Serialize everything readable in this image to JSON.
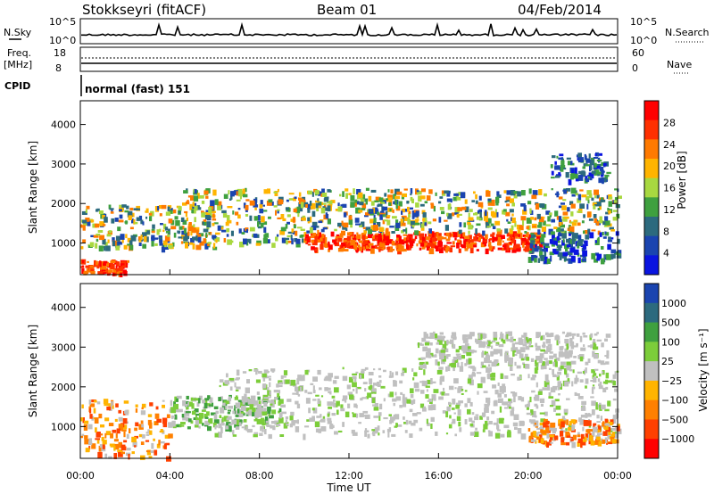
{
  "header": {
    "station": "Stokkseyri (fitACF)",
    "beam": "Beam 01",
    "date": "04/Feb/2014"
  },
  "param_panels": {
    "nsky_label": "N.Sky",
    "nsky_ticks": [
      "10^5",
      "10^0"
    ],
    "nsearch_label": "N.Search",
    "nsearch_ticks": [
      "10^5",
      "10^0"
    ],
    "freq_label": "Freq.",
    "freq_unit": "[MHz]",
    "freq_ticks": [
      "18",
      "8"
    ],
    "nave_label": "Nave",
    "nave_ticks": [
      "60",
      "0"
    ],
    "cpid_label": "CPID",
    "cpid_value": "normal (fast) 151"
  },
  "chart_data": [
    {
      "type": "heatmap",
      "name": "power",
      "ylabel": "Slant Range [km]",
      "xlabel": "Time UT",
      "xlim": [
        0,
        24
      ],
      "ylim": [
        200,
        4600
      ],
      "yticks": [
        "1000",
        "2000",
        "3000",
        "4000"
      ],
      "xticks": [
        "00:00",
        "04:00",
        "08:00",
        "12:00",
        "16:00",
        "20:00",
        "00:00"
      ],
      "colorbar": {
        "label": "Power [dB]",
        "ticks": [
          "28",
          "24",
          "20",
          "16",
          "12",
          "8",
          "4"
        ],
        "colors": [
          "#ff0000",
          "#ff3000",
          "#ff7a00",
          "#ffb400",
          "#a8d840",
          "#3fa03f",
          "#2c6a7e",
          "#1a44b0",
          "#0a14e0"
        ]
      },
      "bands": [
        {
          "t0": 0.0,
          "t1": 2.0,
          "r_lo": 250,
          "r_hi": 600,
          "level": "high"
        },
        {
          "t0": 0.0,
          "t1": 6.0,
          "r_lo": 900,
          "r_hi": 2000,
          "level": "mid"
        },
        {
          "t0": 4.5,
          "t1": 10.0,
          "r_lo": 1000,
          "r_hi": 2400,
          "level": "mid"
        },
        {
          "t0": 10.0,
          "t1": 20.5,
          "r_lo": 850,
          "r_hi": 1300,
          "level": "high"
        },
        {
          "t0": 10.0,
          "t1": 24.0,
          "r_lo": 1300,
          "r_hi": 2400,
          "level": "mid"
        },
        {
          "t0": 20.0,
          "t1": 24.0,
          "r_lo": 600,
          "r_hi": 1300,
          "level": "low"
        },
        {
          "t0": 21.0,
          "t1": 23.5,
          "r_lo": 2600,
          "r_hi": 3300,
          "level": "low"
        }
      ]
    },
    {
      "type": "heatmap",
      "name": "velocity",
      "ylabel": "Slant Range [km]",
      "xlabel": "Time UT",
      "xlim": [
        0,
        24
      ],
      "ylim": [
        200,
        4600
      ],
      "yticks": [
        "1000",
        "2000",
        "3000",
        "4000"
      ],
      "xticks": [
        "00:00",
        "04:00",
        "08:00",
        "12:00",
        "16:00",
        "20:00",
        "00:00"
      ],
      "colorbar": {
        "label": "Velocity [m s⁻¹]",
        "ticks": [
          "1000",
          "500",
          "100",
          "25",
          "−25",
          "−100",
          "−500",
          "−1000"
        ],
        "colors": [
          "#1a44b0",
          "#2c6a7e",
          "#3fa03f",
          "#7ccd3a",
          "#c0c0c0",
          "#ffb400",
          "#ff8000",
          "#ff4000",
          "#ff0000"
        ]
      },
      "bands": [
        {
          "t0": 0.0,
          "t1": 4.0,
          "r_lo": 250,
          "r_hi": 1700,
          "level": "orange"
        },
        {
          "t0": 4.0,
          "t1": 9.0,
          "r_lo": 1000,
          "r_hi": 1800,
          "level": "green"
        },
        {
          "t0": 6.0,
          "t1": 24.0,
          "r_lo": 800,
          "r_hi": 2500,
          "level": "gray"
        },
        {
          "t0": 15.0,
          "t1": 23.5,
          "r_lo": 2500,
          "r_hi": 3400,
          "level": "gray"
        },
        {
          "t0": 20.0,
          "t1": 24.0,
          "r_lo": 600,
          "r_hi": 1200,
          "level": "orange"
        }
      ]
    }
  ]
}
